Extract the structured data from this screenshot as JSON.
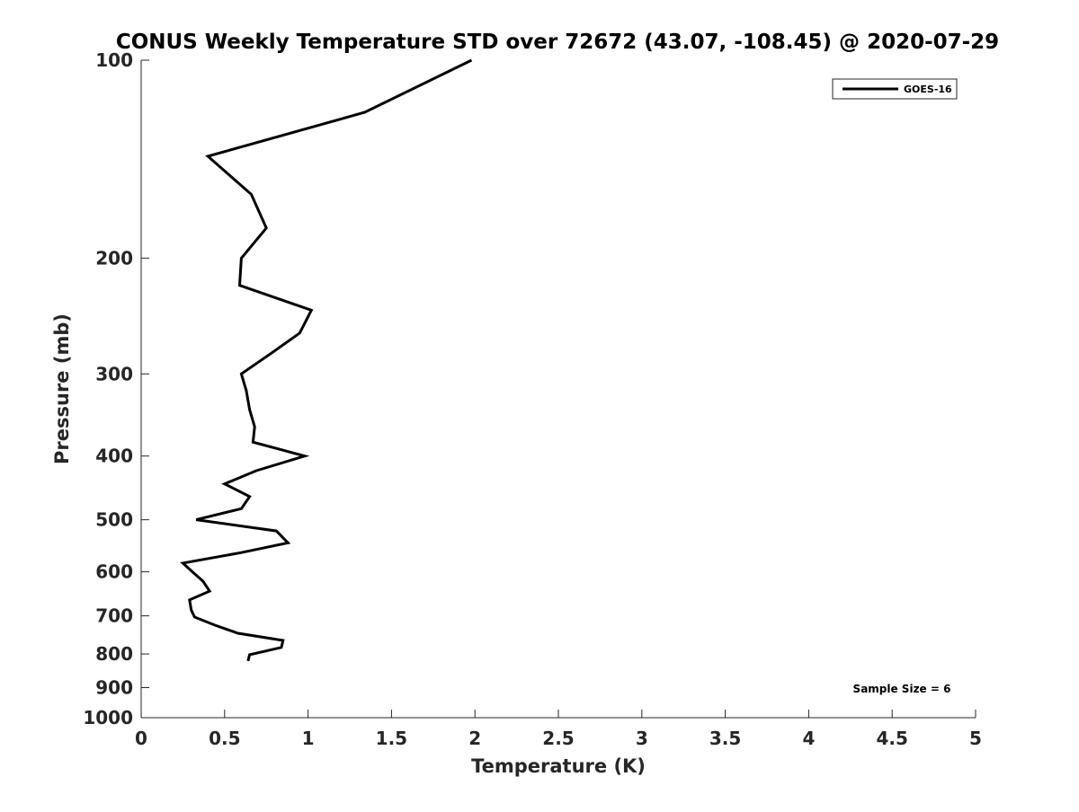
{
  "chart_data": {
    "type": "line",
    "title": "CONUS Weekly Temperature STD over 72672 (43.07, -108.45) @ 2020-07-29",
    "xlabel": "Temperature (K)",
    "ylabel": "Pressure (mb)",
    "xlim": [
      0,
      5
    ],
    "ylim": [
      100,
      1000
    ],
    "yscale": "log",
    "yreversed": true,
    "grid": false,
    "xticks": [
      "0",
      "0.5",
      "1",
      "1.5",
      "2",
      "2.5",
      "3",
      "3.5",
      "4",
      "4.5",
      "5"
    ],
    "yticks": [
      "100",
      "200",
      "300",
      "400",
      "500",
      "600",
      "700",
      "800",
      "900",
      "1000"
    ],
    "legend": {
      "placement": "top-right",
      "entries": [
        "GOES-16"
      ]
    },
    "annotation": "Sample Size = 6",
    "series": [
      {
        "name": "GOES-16",
        "color": "#000000",
        "x": [
          1.98,
          1.34,
          0.4,
          0.66,
          0.75,
          0.6,
          0.59,
          1.02,
          0.95,
          0.78,
          0.6,
          0.63,
          0.65,
          0.68,
          0.67,
          0.98,
          0.69,
          0.5,
          0.65,
          0.6,
          0.33,
          0.81,
          0.88,
          0.6,
          0.25,
          0.31,
          0.37,
          0.41,
          0.29,
          0.3,
          0.32,
          0.44,
          0.58,
          0.85,
          0.84,
          0.65,
          0.64
        ],
        "y": [
          100,
          120,
          140,
          160,
          180,
          200,
          220,
          240,
          260,
          279,
          300,
          318,
          340,
          361,
          381,
          400,
          421,
          441,
          461,
          481,
          500,
          520,
          542,
          561,
          582,
          601,
          620,
          642,
          662,
          686,
          703,
          723,
          744,
          763,
          782,
          802,
          820
        ]
      }
    ]
  }
}
